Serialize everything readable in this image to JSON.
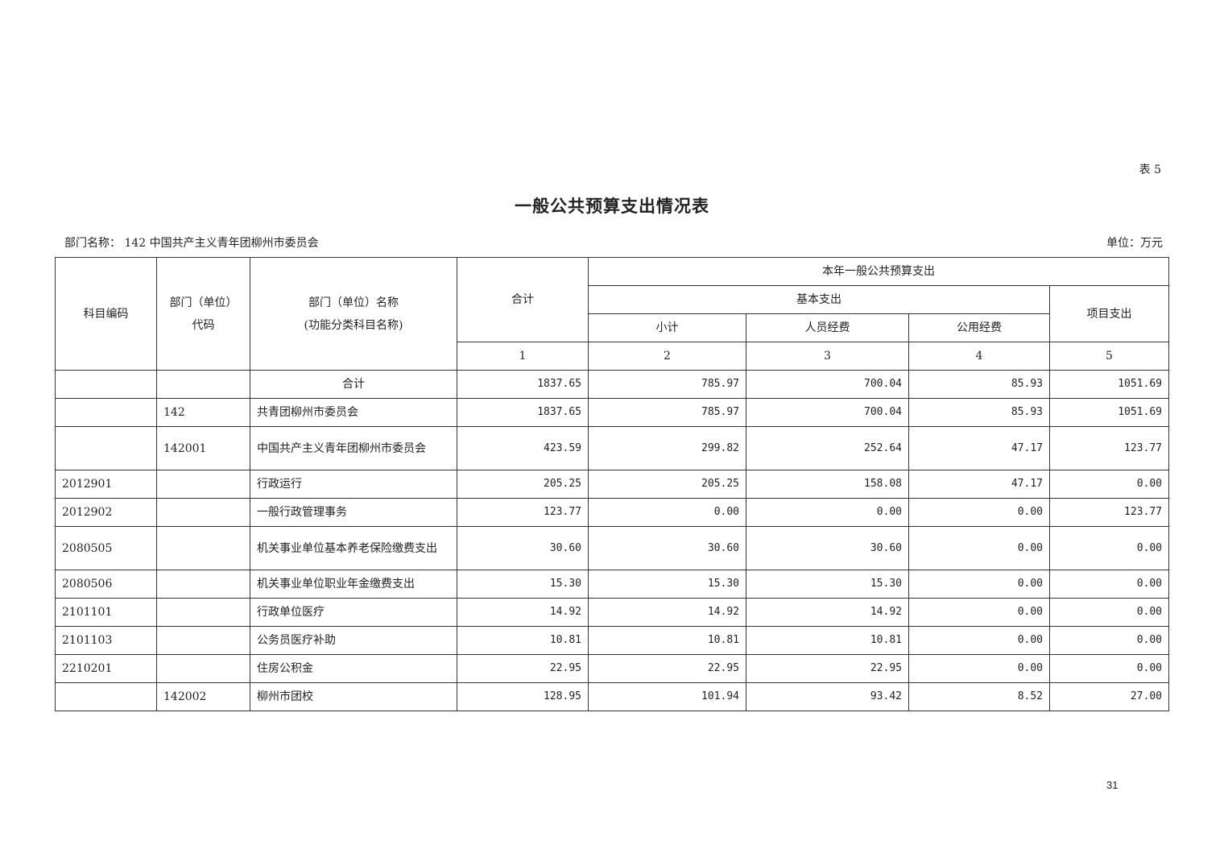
{
  "table_no": "表 5",
  "title": "一般公共预算支出情况表",
  "department": "部门名称：  142 中国共产主义青年团柳州市委员会",
  "unit": "单位：万元",
  "page_number": "31",
  "headers": {
    "subject_code": "科目编码",
    "dept_code": "部门（单位）代码",
    "dept_name_1": "部门（单位）名称",
    "dept_name_2": "(功能分类科目名称)",
    "total": "合计",
    "group": "本年一般公共预算支出",
    "basic": "基本支出",
    "project": "项目支出",
    "subtotal": "小计",
    "personnel": "人员经费",
    "public": "公用经费",
    "col_nums": [
      "1",
      "2",
      "3",
      "4",
      "5"
    ]
  },
  "rows": [
    {
      "code": "",
      "dept": "",
      "name": "合计",
      "total": "1837.65",
      "subtotal": "785.97",
      "personnel": "700.04",
      "public": "85.93",
      "project": "1051.69",
      "center": true
    },
    {
      "code": "",
      "dept": "142",
      "name": "共青团柳州市委员会",
      "total": "1837.65",
      "subtotal": "785.97",
      "personnel": "700.04",
      "public": "85.93",
      "project": "1051.69"
    },
    {
      "code": "",
      "dept": "142001",
      "name": "中国共产主义青年团柳州市委员会",
      "total": "423.59",
      "subtotal": "299.82",
      "personnel": "252.64",
      "public": "47.17",
      "project": "123.77"
    },
    {
      "code": "2012901",
      "dept": "",
      "name": "行政运行",
      "total": "205.25",
      "subtotal": "205.25",
      "personnel": "158.08",
      "public": "47.17",
      "project": "0.00"
    },
    {
      "code": "2012902",
      "dept": "",
      "name": "一般行政管理事务",
      "total": "123.77",
      "subtotal": "0.00",
      "personnel": "0.00",
      "public": "0.00",
      "project": "123.77"
    },
    {
      "code": "2080505",
      "dept": "",
      "name": "机关事业单位基本养老保险缴费支出",
      "total": "30.60",
      "subtotal": "30.60",
      "personnel": "30.60",
      "public": "0.00",
      "project": "0.00"
    },
    {
      "code": "2080506",
      "dept": "",
      "name": "机关事业单位职业年金缴费支出",
      "total": "15.30",
      "subtotal": "15.30",
      "personnel": "15.30",
      "public": "0.00",
      "project": "0.00"
    },
    {
      "code": "2101101",
      "dept": "",
      "name": "行政单位医疗",
      "total": "14.92",
      "subtotal": "14.92",
      "personnel": "14.92",
      "public": "0.00",
      "project": "0.00"
    },
    {
      "code": "2101103",
      "dept": "",
      "name": "公务员医疗补助",
      "total": "10.81",
      "subtotal": "10.81",
      "personnel": "10.81",
      "public": "0.00",
      "project": "0.00"
    },
    {
      "code": "2210201",
      "dept": "",
      "name": "住房公积金",
      "total": "22.95",
      "subtotal": "22.95",
      "personnel": "22.95",
      "public": "0.00",
      "project": "0.00"
    },
    {
      "code": "",
      "dept": "142002",
      "name": "柳州市团校",
      "total": "128.95",
      "subtotal": "101.94",
      "personnel": "93.42",
      "public": "8.52",
      "project": "27.00"
    }
  ]
}
